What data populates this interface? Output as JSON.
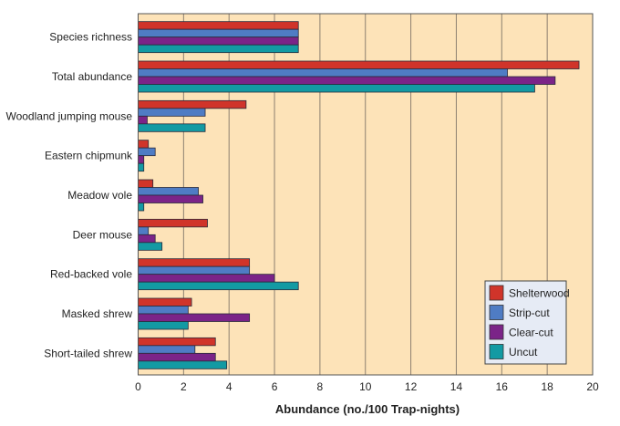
{
  "chart_data": {
    "type": "bar",
    "orientation": "horizontal",
    "title": "",
    "xlabel": "Abundance (no./100 Trap-nights)",
    "ylabel": "",
    "xlim": [
      0,
      20
    ],
    "xticks": [
      0,
      2,
      4,
      6,
      8,
      10,
      12,
      14,
      16,
      18,
      20
    ],
    "grid": true,
    "legend_position": "bottom-right",
    "categories": [
      "Species richness",
      "Total abundance",
      "Woodland jumping mouse",
      "Eastern chipmunk",
      "Meadow vole",
      "Deer mouse",
      "Red-backed vole",
      "Masked shrew",
      "Short-tailed shrew"
    ],
    "series": [
      {
        "name": "Shelterwood",
        "color": "#d0342a",
        "values": [
          7.05,
          19.4,
          4.75,
          0.45,
          0.65,
          3.05,
          4.9,
          2.35,
          3.4
        ]
      },
      {
        "name": "Strip-cut",
        "color": "#4f7cc4",
        "values": [
          7.05,
          16.25,
          2.95,
          0.75,
          2.65,
          0.45,
          4.9,
          2.2,
          2.5
        ]
      },
      {
        "name": "Clear-cut",
        "color": "#7b2488",
        "values": [
          7.05,
          18.35,
          0.4,
          0.25,
          2.85,
          0.75,
          6.0,
          4.9,
          3.4
        ]
      },
      {
        "name": "Uncut",
        "color": "#139aa3",
        "values": [
          7.05,
          17.45,
          2.95,
          0.25,
          0.25,
          1.05,
          7.05,
          2.2,
          3.9
        ]
      }
    ]
  },
  "colors": {
    "plot_bg": "#fde3b8",
    "grid": "#8c8070",
    "legend_bg": "#e6ebf5"
  }
}
